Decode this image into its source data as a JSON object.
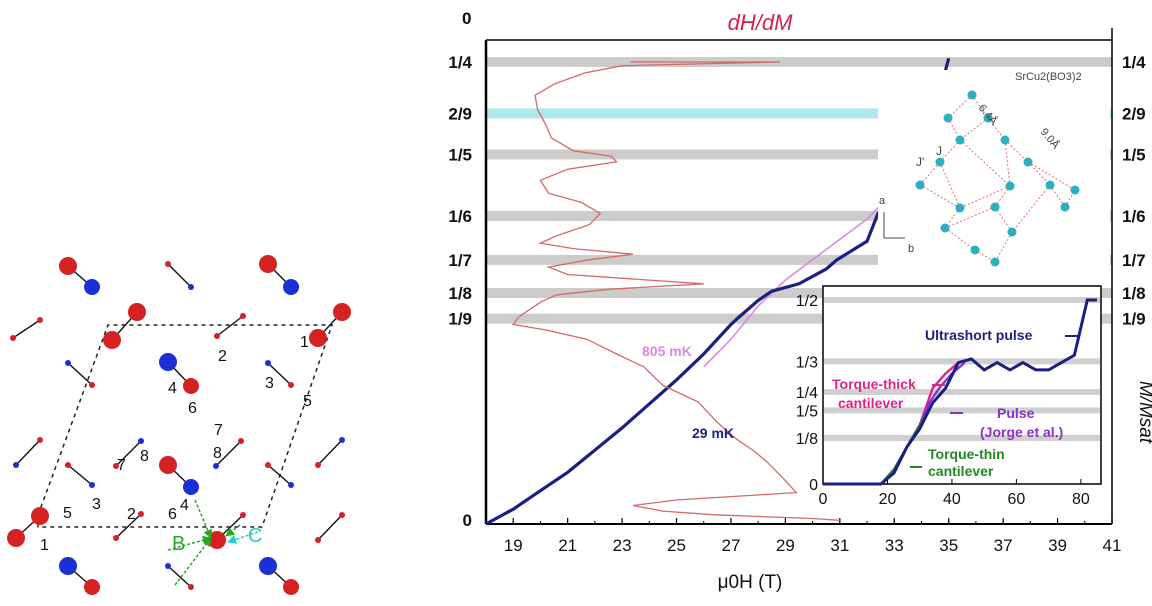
{
  "colors": {
    "plateau": "#cccccc",
    "plateau_highlight": "#aee9ee",
    "dhdm_curve": "#d26a6a",
    "m_29mk": "#1c1f82",
    "m_805mk": "#dd88dd",
    "lattice_red": "#d42222",
    "lattice_blue": "#1a2fd6",
    "arrow_green": "#22aa22",
    "arrow_cyan": "#22cccc",
    "inset_ultrashort": "#1c1f82",
    "inset_torque_thick": "#dd2288",
    "inset_pulse": "#8833cc",
    "inset_torque_thin": "#228822",
    "title_color": "#d42250"
  },
  "lattice": {
    "labels": [
      "1",
      "2",
      "3",
      "4",
      "5",
      "6",
      "7",
      "8",
      "1",
      "2",
      "3",
      "4",
      "5",
      "6",
      "7",
      "8"
    ],
    "label_B": "B",
    "label_C": "C"
  },
  "chart_data": [
    {
      "type": "line",
      "title": "dH/dM",
      "xlabel": "μ0H (T)",
      "ylabel_right": "M/Msat",
      "xlim": [
        18,
        41
      ],
      "x_ticks": [
        19,
        21,
        23,
        25,
        27,
        29,
        31,
        33,
        35,
        37,
        39,
        41
      ],
      "y_ticks_left": [
        "0",
        "1/9",
        "1/8",
        "1/7",
        "1/6",
        "1/5",
        "2/9",
        "1/4",
        "0"
      ],
      "y_ticks_right": [
        "1/9",
        "1/8",
        "1/7",
        "1/6",
        "1/5",
        "2/9",
        "1/4"
      ],
      "plateaus": [
        {
          "label": "1/4",
          "value": 0.25
        },
        {
          "label": "2/9",
          "value": 0.2222,
          "highlight": true
        },
        {
          "label": "1/5",
          "value": 0.2
        },
        {
          "label": "1/6",
          "value": 0.1667
        },
        {
          "label": "1/7",
          "value": 0.1429
        },
        {
          "label": "1/8",
          "value": 0.125
        },
        {
          "label": "1/9",
          "value": 0.1111
        }
      ],
      "series": [
        {
          "name": "29 mK",
          "points": [
            [
              18,
              0
            ],
            [
              19,
              0.008
            ],
            [
              20,
              0.018
            ],
            [
              21,
              0.028
            ],
            [
              22,
              0.04
            ],
            [
              23,
              0.052
            ],
            [
              24,
              0.065
            ],
            [
              25,
              0.078
            ],
            [
              26,
              0.092
            ],
            [
              27,
              0.108
            ],
            [
              27.3,
              0.112
            ],
            [
              28,
              0.121
            ],
            [
              28.5,
              0.126
            ],
            [
              29.5,
              0.13
            ],
            [
              30.5,
              0.138
            ],
            [
              30.9,
              0.143
            ],
            [
              32,
              0.153
            ],
            [
              32.4,
              0.168
            ],
            [
              33.3,
              0.185
            ],
            [
              33.8,
              0.2
            ],
            [
              34.3,
              0.215
            ],
            [
              34.5,
              0.224
            ],
            [
              35,
              0.252
            ]
          ]
        },
        {
          "name": "805 mK",
          "points": [
            [
              26,
              0.085
            ],
            [
              27,
              0.1
            ],
            [
              28,
              0.118
            ],
            [
              29,
              0.132
            ],
            [
              30,
              0.143
            ],
            [
              31,
              0.154
            ],
            [
              32,
              0.165
            ],
            [
              33,
              0.18
            ],
            [
              34,
              0.21
            ],
            [
              34.6,
              0.235
            ]
          ]
        },
        {
          "name": "dH/dM",
          "points_xy": [
            [
              23.3,
              0.25
            ],
            [
              28.8,
              0.25
            ],
            [
              23.0,
              0.248
            ],
            [
              21.6,
              0.244
            ],
            [
              20.5,
              0.238
            ],
            [
              19.8,
              0.232
            ],
            [
              19.9,
              0.224
            ],
            [
              20.2,
              0.216
            ],
            [
              20.4,
              0.209
            ],
            [
              21.2,
              0.202
            ],
            [
              22.6,
              0.199
            ],
            [
              22.8,
              0.196
            ],
            [
              21.0,
              0.192
            ],
            [
              20.0,
              0.186
            ],
            [
              20.3,
              0.179
            ],
            [
              21.5,
              0.174
            ],
            [
              22.2,
              0.168
            ],
            [
              21.8,
              0.162
            ],
            [
              20.6,
              0.156
            ],
            [
              20.0,
              0.152
            ],
            [
              21.2,
              0.149
            ],
            [
              23.4,
              0.146
            ],
            [
              21.8,
              0.143
            ],
            [
              20.3,
              0.139
            ],
            [
              21.0,
              0.135
            ],
            [
              24.0,
              0.132
            ],
            [
              26.0,
              0.13
            ],
            [
              22.5,
              0.127
            ],
            [
              20.6,
              0.124
            ],
            [
              20.0,
              0.12
            ],
            [
              19.2,
              0.112
            ],
            [
              19.0,
              0.108
            ],
            [
              20.2,
              0.105
            ],
            [
              21.7,
              0.1
            ],
            [
              22.8,
              0.092
            ],
            [
              23.8,
              0.085
            ],
            [
              24.5,
              0.075
            ],
            [
              25.8,
              0.066
            ],
            [
              26.5,
              0.055
            ],
            [
              27.2,
              0.046
            ],
            [
              27.8,
              0.04
            ],
            [
              28.3,
              0.034
            ],
            [
              28.9,
              0.025
            ],
            [
              29.4,
              0.017
            ],
            [
              25.0,
              0.013
            ],
            [
              23.4,
              0.01
            ],
            [
              24.5,
              0.007
            ],
            [
              26.4,
              0.005
            ],
            [
              30.0,
              0.003
            ],
            [
              31.0,
              0.002
            ]
          ]
        }
      ],
      "annotations": [
        "805 mK",
        "29 mK"
      ],
      "lattice_inset": {
        "label_formula": "SrCu2(BO3)2",
        "label_d1": "6.4Å",
        "label_d2": "9.0Å",
        "label_J": "J",
        "label_Jp": "J'",
        "axis_a": "a",
        "axis_b": "b"
      }
    },
    {
      "type": "line",
      "xlim": [
        0,
        85
      ],
      "x_ticks": [
        0,
        20,
        40,
        60,
        80
      ],
      "y_ticks": [
        "0",
        "1/8",
        "1/5",
        "1/4",
        "1/3",
        "1/2"
      ],
      "y_values": [
        0,
        0.125,
        0.2,
        0.25,
        0.3333,
        0.5
      ],
      "series": [
        {
          "name": "Ultrashort pulse",
          "points": [
            [
              0,
              0
            ],
            [
              18,
              0
            ],
            [
              22,
              0.03
            ],
            [
              26,
              0.1
            ],
            [
              30,
              0.15
            ],
            [
              34,
              0.22
            ],
            [
              38,
              0.26
            ],
            [
              42,
              0.33
            ],
            [
              46,
              0.34
            ],
            [
              50,
              0.31
            ],
            [
              54,
              0.33
            ],
            [
              58,
              0.31
            ],
            [
              62,
              0.33
            ],
            [
              66,
              0.31
            ],
            [
              70,
              0.31
            ],
            [
              74,
              0.33
            ],
            [
              78,
              0.35
            ],
            [
              82,
              0.5
            ],
            [
              85,
              0.5
            ]
          ]
        },
        {
          "name": "Torque-thick cantilever",
          "points": [
            [
              18,
              0
            ],
            [
              22,
              0.03
            ],
            [
              26,
              0.1
            ],
            [
              30,
              0.16
            ],
            [
              34,
              0.26
            ],
            [
              38,
              0.3
            ],
            [
              42,
              0.33
            ]
          ]
        },
        {
          "name": "Pulse (Jorge et al.)",
          "points": [
            [
              18,
              0
            ],
            [
              22,
              0.03
            ],
            [
              26,
              0.1
            ],
            [
              30,
              0.16
            ],
            [
              33,
              0.22
            ],
            [
              36,
              0.26
            ],
            [
              40,
              0.3
            ],
            [
              44,
              0.33
            ]
          ]
        },
        {
          "name": "Torque-thin cantilever",
          "points": [
            [
              18,
              0
            ],
            [
              22,
              0.04
            ],
            [
              26,
              0.1
            ],
            [
              30,
              0.16
            ],
            [
              33,
              0.2
            ]
          ]
        }
      ],
      "legend_texts": [
        "Ultrashort pulse",
        "Torque-thick",
        "cantilever",
        "Pulse",
        "(Jorge et al.)",
        "Torque-thin",
        "cantilever"
      ]
    }
  ]
}
